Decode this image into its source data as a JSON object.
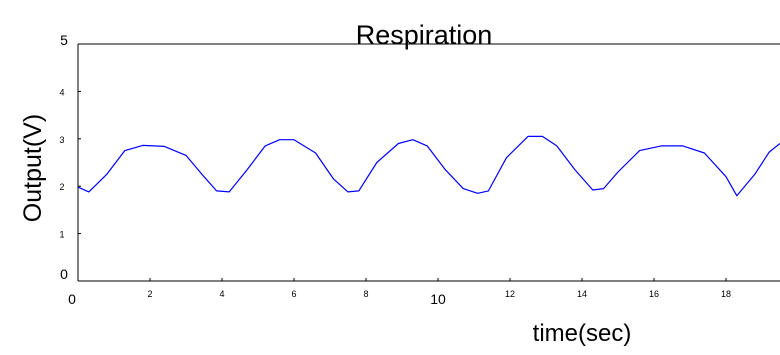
{
  "chart_data": {
    "type": "line",
    "title": "Respiration",
    "ylabel": "Output(V)",
    "xlabel": "time(sec)",
    "xlim": [
      0,
      19.5
    ],
    "ylim": [
      0,
      5
    ],
    "x_ticks": [
      {
        "value": 0,
        "label": "0",
        "size": "lg"
      },
      {
        "value": 2,
        "label": "2",
        "size": "sm"
      },
      {
        "value": 4,
        "label": "4",
        "size": "sm"
      },
      {
        "value": 6,
        "label": "6",
        "size": "sm"
      },
      {
        "value": 8,
        "label": "8",
        "size": "sm"
      },
      {
        "value": 10,
        "label": "10",
        "size": "lg"
      },
      {
        "value": 12,
        "label": "12",
        "size": "sm"
      },
      {
        "value": 14,
        "label": "14",
        "size": "sm"
      },
      {
        "value": 16,
        "label": "16",
        "size": "sm"
      },
      {
        "value": 18,
        "label": "18",
        "size": "sm"
      }
    ],
    "y_ticks": [
      {
        "value": 0,
        "label": "0",
        "size": "lg"
      },
      {
        "value": 1,
        "label": "1",
        "size": "sm"
      },
      {
        "value": 2,
        "label": "2",
        "size": "sm"
      },
      {
        "value": 3,
        "label": "3",
        "size": "sm"
      },
      {
        "value": 4,
        "label": "4",
        "size": "sm"
      },
      {
        "value": 5,
        "label": "5",
        "size": "lg"
      }
    ],
    "grid": false,
    "series": [
      {
        "color": "#0000ff",
        "x": [
          0.0,
          0.3,
          0.8,
          1.3,
          1.8,
          2.4,
          3.0,
          3.5,
          3.85,
          4.2,
          4.7,
          5.2,
          5.6,
          6.0,
          6.6,
          7.1,
          7.5,
          7.8,
          8.3,
          8.9,
          9.3,
          9.7,
          10.2,
          10.7,
          11.1,
          11.4,
          11.9,
          12.5,
          12.9,
          13.3,
          13.8,
          14.3,
          14.6,
          15.0,
          15.6,
          16.2,
          16.8,
          17.4,
          18.0,
          18.3,
          18.8,
          19.2,
          19.5
        ],
        "y": [
          1.98,
          1.88,
          2.25,
          2.75,
          2.86,
          2.84,
          2.65,
          2.2,
          1.9,
          1.88,
          2.35,
          2.85,
          2.98,
          2.98,
          2.7,
          2.15,
          1.88,
          1.9,
          2.5,
          2.9,
          2.98,
          2.85,
          2.35,
          1.95,
          1.85,
          1.9,
          2.6,
          3.05,
          3.05,
          2.85,
          2.35,
          1.92,
          1.95,
          2.3,
          2.75,
          2.85,
          2.85,
          2.7,
          2.2,
          1.8,
          2.25,
          2.72,
          2.9
        ]
      }
    ]
  }
}
